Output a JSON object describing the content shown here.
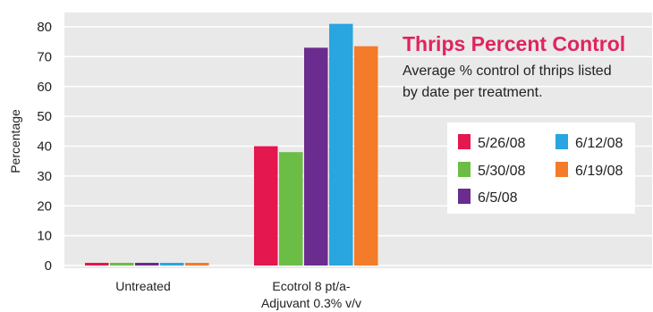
{
  "chart_data": {
    "type": "bar",
    "title": "Thrips Percent Control",
    "subtitle_lines": [
      "Average % control of thrips listed",
      "by date per treatment."
    ],
    "ylabel": "Percentage",
    "xlabel": "",
    "ylim": [
      0,
      85
    ],
    "yticks": [
      0,
      10,
      20,
      30,
      40,
      50,
      60,
      70,
      80
    ],
    "grid": true,
    "legend_position": "right",
    "categories": [
      [
        "Untreated"
      ],
      [
        "Ecotrol 8 pt/a-",
        "Adjuvant 0.3% v/v"
      ]
    ],
    "series": [
      {
        "name": "5/26/08",
        "color": "#e4174f",
        "values": [
          0.5,
          40
        ]
      },
      {
        "name": "5/30/08",
        "color": "#6cbd45",
        "values": [
          0.5,
          38
        ]
      },
      {
        "name": "6/5/08",
        "color": "#6a2c8e",
        "values": [
          0.5,
          73
        ]
      },
      {
        "name": "6/12/08",
        "color": "#29a6df",
        "values": [
          0.5,
          81
        ]
      },
      {
        "name": "6/19/08",
        "color": "#f47b2a",
        "values": [
          0.5,
          73.5
        ]
      }
    ],
    "colors": {
      "plot_bg": "#e9e9e9",
      "grid": "#ffffff",
      "title": "#e0245e",
      "legend_bg": "#ffffff"
    }
  }
}
